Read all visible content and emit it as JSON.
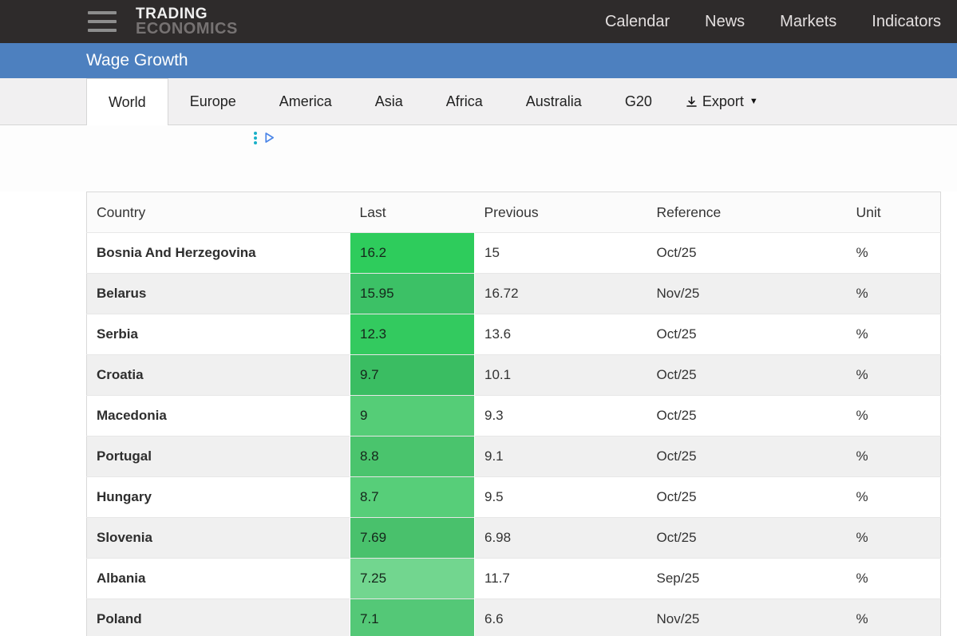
{
  "header": {
    "logo_line1": "TRADING",
    "logo_line2": "ECONOMICS",
    "nav_items": [
      "Calendar",
      "News",
      "Markets",
      "Indicators"
    ]
  },
  "page_title": "Wage Growth",
  "tabs": {
    "items": [
      "World",
      "Europe",
      "America",
      "Asia",
      "Africa",
      "Australia",
      "G20"
    ],
    "active": "World",
    "export_label": "Export"
  },
  "table": {
    "columns": [
      "Country",
      "Last",
      "Previous",
      "Reference",
      "Unit"
    ],
    "rows": [
      {
        "country": "Bosnia And Herzegovina",
        "last": "16.2",
        "last_color": "#2ecc5c",
        "previous": "15",
        "reference": "Oct/25",
        "unit": "%"
      },
      {
        "country": "Belarus",
        "last": "15.95",
        "last_color": "#3cc166",
        "previous": "16.72",
        "reference": "Nov/25",
        "unit": "%"
      },
      {
        "country": "Serbia",
        "last": "12.3",
        "last_color": "#33ca5f",
        "previous": "13.6",
        "reference": "Oct/25",
        "unit": "%"
      },
      {
        "country": "Croatia",
        "last": "9.7",
        "last_color": "#3abd62",
        "previous": "10.1",
        "reference": "Oct/25",
        "unit": "%"
      },
      {
        "country": "Macedonia",
        "last": "9",
        "last_color": "#55cd77",
        "previous": "9.3",
        "reference": "Oct/25",
        "unit": "%"
      },
      {
        "country": "Portugal",
        "last": "8.8",
        "last_color": "#4ac46d",
        "previous": "9.1",
        "reference": "Oct/25",
        "unit": "%"
      },
      {
        "country": "Hungary",
        "last": "8.7",
        "last_color": "#57ce79",
        "previous": "9.5",
        "reference": "Oct/25",
        "unit": "%"
      },
      {
        "country": "Slovenia",
        "last": "7.69",
        "last_color": "#49c16c",
        "previous": "6.98",
        "reference": "Oct/25",
        "unit": "%"
      },
      {
        "country": "Albania",
        "last": "7.25",
        "last_color": "#72d68f",
        "previous": "11.7",
        "reference": "Sep/25",
        "unit": "%"
      },
      {
        "country": "Poland",
        "last": "7.1",
        "last_color": "#54c877",
        "previous": "6.6",
        "reference": "Nov/25",
        "unit": "%"
      }
    ]
  },
  "colors": {
    "header_bg": "#2e2b2b",
    "accent_blue": "#4d80bf",
    "ad_dots": "#19b0c8",
    "ad_triangle": "#4c86e8"
  }
}
